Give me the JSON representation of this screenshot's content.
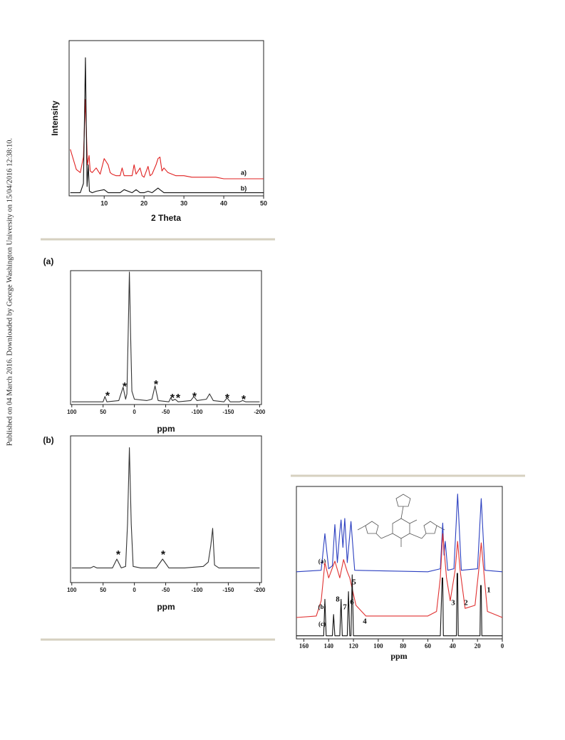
{
  "side_note": "Published on 04 March 2016. Downloaded by George Washington University on 15/04/2016 12:38:10.",
  "chart_data": [
    {
      "type": "line",
      "xlabel": "2 Theta",
      "ylabel": "Intensity",
      "xlim": [
        1.2,
        50
      ],
      "ylim": [
        0,
        100
      ],
      "xticks": [
        10,
        20,
        30,
        40,
        50
      ],
      "series": [
        {
          "name": "a)",
          "color": "#e02020",
          "x": [
            1.5,
            3,
            4,
            4.8,
            5.3,
            5.8,
            6.2,
            6.5,
            7,
            8,
            9,
            10,
            10.5,
            11,
            11.5,
            12,
            13,
            14,
            14.5,
            15,
            17,
            17.5,
            18,
            19,
            19.5,
            20,
            21,
            21.5,
            22,
            23,
            23.5,
            24,
            24.5,
            25,
            26,
            27,
            28,
            30,
            32,
            35,
            38,
            40,
            45,
            50
          ],
          "values": [
            30,
            17,
            15,
            25,
            62,
            20,
            26,
            16,
            15,
            18,
            14,
            24,
            22,
            20,
            15,
            14,
            13,
            13,
            18,
            13,
            13,
            20,
            14,
            18,
            13,
            12,
            19,
            13,
            14,
            20,
            24,
            25,
            16,
            18,
            15,
            14,
            13,
            13,
            12,
            12,
            12,
            11,
            11,
            11
          ]
        },
        {
          "name": "b)",
          "color": "#111111",
          "x": [
            1.5,
            4,
            4.8,
            5.3,
            5.7,
            6,
            6.3,
            7,
            8,
            10,
            11,
            14,
            15,
            17,
            18,
            19,
            20,
            21,
            22,
            23.5,
            24,
            25,
            30,
            40,
            50
          ],
          "values": [
            2,
            2,
            8,
            89,
            6,
            20,
            3,
            2,
            3,
            4,
            2,
            2,
            4,
            2,
            4,
            2,
            2,
            3,
            2,
            5,
            4,
            2,
            2,
            2,
            2
          ]
        }
      ]
    },
    {
      "type": "line",
      "panel_label": "(a)",
      "xlabel": "ppm",
      "xlim": [
        102,
        -203
      ],
      "ylim": [
        0,
        100
      ],
      "xticks": [
        100,
        50,
        0,
        -50,
        -100,
        -150,
        -200
      ],
      "annotations": [
        "*",
        "*",
        "*",
        "*",
        "*",
        "*",
        "*",
        "*"
      ],
      "series": [
        {
          "color": "#333333",
          "x": [
            100,
            60,
            50,
            47,
            44,
            25,
            18,
            14,
            12,
            10,
            8,
            6,
            4,
            0,
            -20,
            -28,
            -33,
            -38,
            -55,
            -58,
            -61,
            -65,
            -70,
            -90,
            -95,
            -100,
            -115,
            -120,
            -126,
            -143,
            -148,
            -153,
            -168,
            -173,
            -178,
            -200
          ],
          "values": [
            2,
            2,
            2,
            6,
            2,
            3,
            13,
            4,
            8,
            50,
            99,
            50,
            10,
            4,
            3,
            4,
            14,
            3,
            2,
            5,
            3,
            4,
            2,
            3,
            6,
            3,
            4,
            8,
            3,
            2,
            5,
            2,
            2,
            3,
            2,
            2
          ]
        }
      ]
    },
    {
      "type": "line",
      "panel_label": "(b)",
      "xlabel": "ppm",
      "xlim": [
        102,
        -203
      ],
      "ylim": [
        0,
        100
      ],
      "xticks": [
        100,
        50,
        0,
        -50,
        -100,
        -150,
        -200
      ],
      "annotations": [
        "*",
        "*"
      ],
      "series": [
        {
          "color": "#333333",
          "x": [
            100,
            70,
            65,
            60,
            35,
            28,
            21,
            14,
            11,
            8,
            5,
            2,
            -10,
            -35,
            -45,
            -55,
            -80,
            -110,
            -118,
            -122,
            -125,
            -128,
            -135,
            -200
          ],
          "values": [
            10,
            10,
            11,
            10,
            10,
            16,
            10,
            11,
            40,
            92,
            40,
            11,
            10,
            10,
            16,
            10,
            10,
            11,
            14,
            25,
            37,
            12,
            10,
            10
          ]
        }
      ]
    },
    {
      "type": "line",
      "xlabel": "ppm",
      "xlim": [
        166,
        0
      ],
      "ylim": [
        0,
        100
      ],
      "xticks": [
        160,
        140,
        120,
        100,
        80,
        60,
        40,
        20,
        0
      ],
      "annotations": [
        "1",
        "2",
        "3",
        "4",
        "5",
        "6",
        "7",
        "8"
      ],
      "series": [
        {
          "name": "(a)",
          "color": "#2b3fc0",
          "x": [
            166,
            146,
            143,
            140,
            137,
            135,
            133,
            131,
            130,
            128.5,
            127,
            125,
            122,
            119,
            60,
            50,
            48,
            47,
            46,
            44,
            39,
            36,
            33,
            20,
            17,
            14,
            0
          ],
          "values": [
            44,
            45,
            69,
            46,
            48,
            75,
            50,
            70,
            78,
            60,
            79,
            50,
            77,
            45,
            44,
            46,
            76,
            55,
            64,
            45,
            46,
            95,
            45,
            46,
            92,
            45,
            44
          ]
        },
        {
          "name": "(b)",
          "color": "#e03030",
          "x": [
            166,
            150,
            146,
            143,
            140,
            135,
            131,
            128,
            125,
            123,
            118,
            110,
            60,
            53,
            50,
            48,
            45,
            42,
            38,
            36,
            34,
            30,
            22,
            19,
            17,
            15,
            12,
            0
          ],
          "values": [
            14,
            15,
            25,
            50,
            40,
            51,
            40,
            52,
            44,
            40,
            22,
            15,
            15,
            18,
            40,
            69,
            40,
            25,
            45,
            64,
            45,
            20,
            22,
            45,
            63,
            45,
            18,
            14
          ]
        },
        {
          "name": "(c)",
          "color": "#111111",
          "x": [
            166,
            144,
            143,
            142,
            137,
            136,
            135,
            131,
            130,
            129,
            125,
            124,
            123,
            122,
            121,
            120,
            119,
            50,
            48.5,
            48,
            47.5,
            37,
            36.5,
            36,
            35.5,
            18,
            17.5,
            17,
            16.5,
            0
          ],
          "values": [
            2,
            2,
            26,
            2,
            2,
            16,
            2,
            2,
            26,
            2,
            2,
            31,
            2,
            2,
            42,
            2,
            2,
            2,
            40,
            40,
            2,
            2,
            43,
            43,
            2,
            2,
            35,
            35,
            2,
            2
          ]
        }
      ]
    }
  ]
}
